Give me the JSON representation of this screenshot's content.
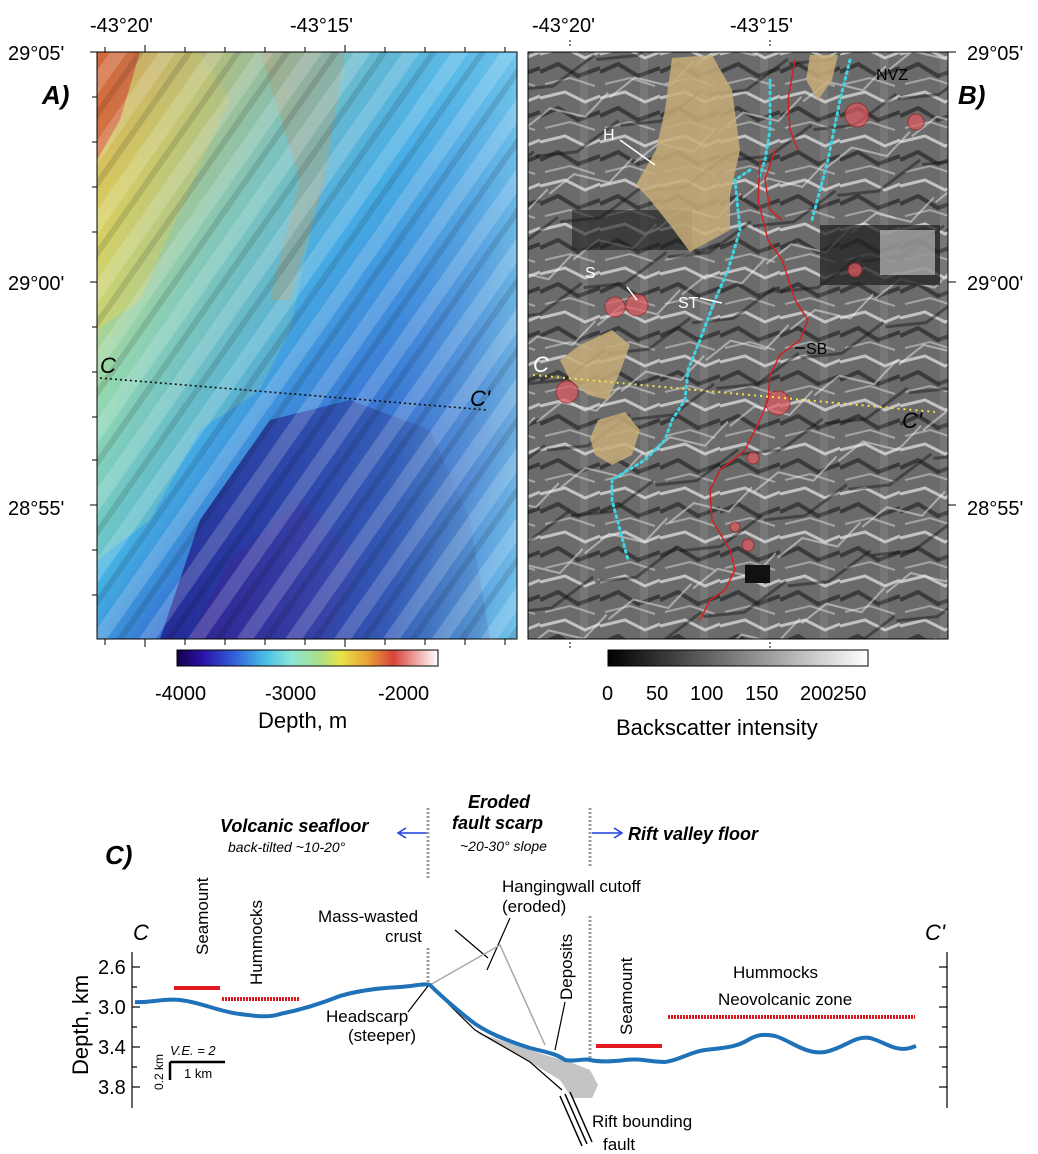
{
  "panel_a": {
    "letter": "A)",
    "top_lon_labels": [
      "-43°20'",
      "-43°15'"
    ],
    "lat_labels": [
      "29°05'",
      "29°00'",
      "28°55'"
    ],
    "profile_start": "C",
    "profile_end": "C'",
    "colorbar": {
      "ticks": [
        "-4000",
        "-3000",
        "-2000"
      ],
      "title": "Depth, m",
      "colors": [
        "#16004a",
        "#2a12a8",
        "#3260d8",
        "#49c0e6",
        "#8ee6d6",
        "#a6e08c",
        "#e9e24a",
        "#e8a236",
        "#d8443a",
        "#eea8a8",
        "#ffffff"
      ]
    }
  },
  "panel_b": {
    "letter": "B)",
    "top_lon_labels": [
      "-43°20'",
      "-43°15'"
    ],
    "lat_labels": [
      "29°05'",
      "29°00'",
      "28°55'"
    ],
    "labels": {
      "h": "H",
      "s": "S",
      "st": "ST",
      "sb": "SB",
      "nvz": "NVZ",
      "c": "C",
      "c_prime": "C'"
    },
    "colorbar": {
      "ticks": [
        "0",
        "50",
        "100",
        "150",
        "200",
        "250"
      ],
      "title": "Backscatter intensity"
    }
  },
  "panel_c": {
    "letter": "C)",
    "left_end": "C",
    "right_end": "C'",
    "volcanic_title": "Volcanic seafloor",
    "volcanic_sub": "back-tilted ~10-20°",
    "eroded_title_1": "Eroded",
    "eroded_title_2": "fault scarp",
    "eroded_sub": "~20-30° slope",
    "rift_title": "Rift valley floor",
    "seamount_left": "Seamount",
    "hummocks_left": "Hummocks",
    "mass_wasted_1": "Mass-wasted",
    "mass_wasted_2": "crust",
    "hangingwall_1": "Hangingwall cutoff",
    "hangingwall_2": "(eroded)",
    "deposits": "Deposits",
    "seamount_right": "Seamount",
    "hummocks_right": "Hummocks",
    "neovolcanic": "Neovolcanic zone",
    "headscarp_1": "Headscarp",
    "headscarp_2": "(steeper)",
    "rift_fault_1": "Rift bounding",
    "rift_fault_2": "fault",
    "y_axis_label": "Depth, km",
    "y_ticks": [
      "2.6",
      "3.0",
      "3.4",
      "3.8"
    ],
    "ve": "V.E. = 2",
    "scale_v": "0.2 km",
    "scale_h": "1 km",
    "profile_color": "#1f72b8",
    "marker_color": "#e0191e"
  }
}
